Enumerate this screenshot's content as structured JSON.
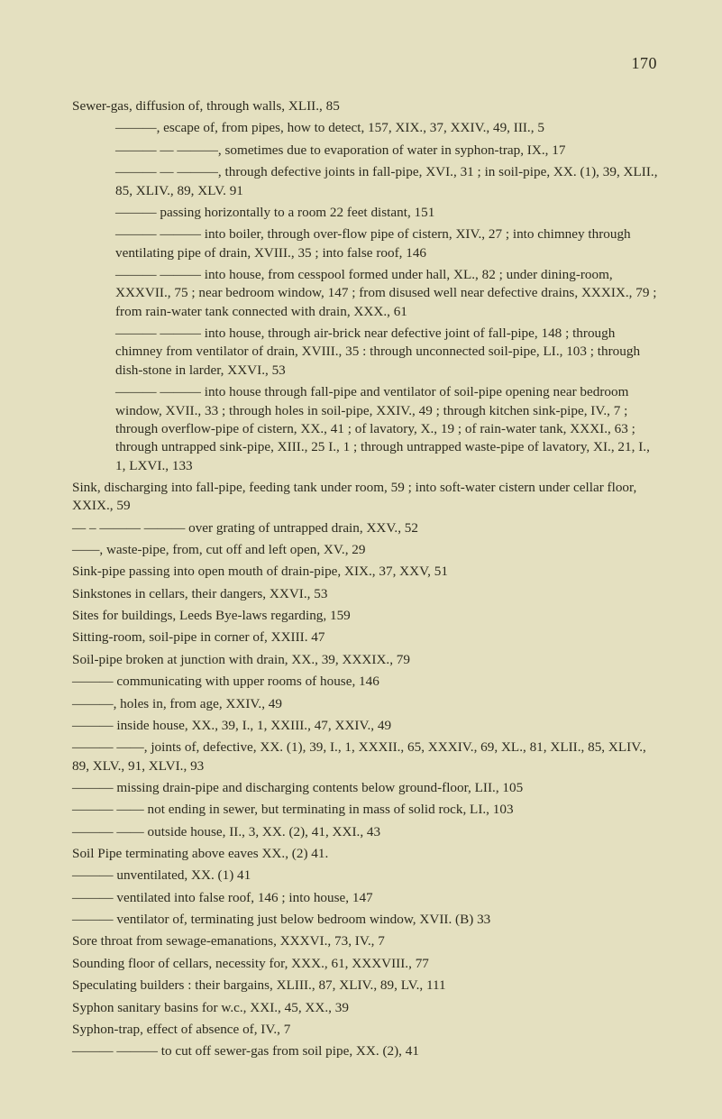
{
  "page_number": "170",
  "lines": [
    {
      "cls": "sub0",
      "t": "Sewer-gas, diffusion of, through walls, XLII., 85"
    },
    {
      "cls": "sub1",
      "t": "———, escape of, from pipes, how to detect, 157, XIX., 37, XXIV., 49, III., 5"
    },
    {
      "cls": "sub1",
      "t": "——— — ———, sometimes due to evaporation of water in syphon-trap, IX., 17"
    },
    {
      "cls": "sub1",
      "t": "——— — ———, through defective joints in fall-pipe, XVI., 31 ; in soil-pipe, XX. (1), 39, XLII., 85, XLIV., 89, XLV. 91"
    },
    {
      "cls": "sub1",
      "t": "——— passing horizontally to a room 22 feet distant, 151"
    },
    {
      "cls": "sub1",
      "t": "——— ——— into boiler, through over-flow pipe of cistern, XIV., 27 ; into chimney through ventilating pipe of drain, XVIII., 35 ; into false roof, 146"
    },
    {
      "cls": "sub1",
      "t": "——— ——— into house, from cesspool formed under hall, XL., 82 ; under dining-room, XXXVII., 75 ; near bedroom window, 147 ; from disused well near defective drains, XXXIX., 79 ; from rain-water tank connected with drain, XXX., 61"
    },
    {
      "cls": "sub1",
      "t": "——— ——— into house, through air-brick near defective joint of fall-pipe, 148 ; through chimney from ventilator of drain, XVIII., 35 : through unconnected soil-pipe, LI., 103 ; through dish-stone in larder, XXVI., 53"
    },
    {
      "cls": "sub1",
      "t": "——— ——— into house through fall-pipe and ventilator of soil-pipe opening near bedroom window, XVII., 33 ; through holes in soil-pipe, XXIV., 49 ; through kitchen sink-pipe, IV., 7 ; through overflow-pipe of cistern, XX., 41 ; of lavatory, X., 19 ; of rain-water tank, XXXI., 63 ; through untrapped sink-pipe, XIII., 25 I., 1 ; through untrapped waste-pipe of lavatory, XI., 21, I., 1, LXVI., 133"
    },
    {
      "cls": "sub0",
      "t": "Sink, discharging into fall-pipe, feeding tank under room, 59 ; into soft-water cistern under cellar floor, XXIX., 59"
    },
    {
      "cls": "sub0",
      "t": "— – ——— ——— over grating of untrapped drain, XXV., 52"
    },
    {
      "cls": "sub0",
      "t": "——, waste-pipe, from, cut off and left open, XV., 29"
    },
    {
      "cls": "sub0",
      "t": "Sink-pipe passing into open mouth of drain-pipe, XIX., 37, XXV, 51"
    },
    {
      "cls": "sub0",
      "t": "Sinkstones in cellars, their dangers, XXVI., 53"
    },
    {
      "cls": "sub0",
      "t": "Sites for buildings, Leeds Bye-laws regarding, 159"
    },
    {
      "cls": "sub0",
      "t": "Sitting-room, soil-pipe in corner of, XXIII. 47"
    },
    {
      "cls": "sub0",
      "t": "Soil-pipe broken at junction with drain, XX., 39, XXXIX., 79"
    },
    {
      "cls": "sub0",
      "t": "——— communicating with upper rooms of house, 146"
    },
    {
      "cls": "sub0",
      "t": "———, holes in, from age, XXIV., 49"
    },
    {
      "cls": "sub0",
      "t": "——— inside house, XX., 39, I., 1, XXIII., 47, XXIV., 49"
    },
    {
      "cls": "sub0",
      "t": "——— ——, joints of, defective, XX. (1), 39, I., 1, XXXII., 65, XXXIV., 69, XL., 81, XLII., 85, XLIV., 89, XLV., 91, XLVI., 93"
    },
    {
      "cls": "sub0",
      "t": "——— missing drain-pipe and discharging contents below ground-floor, LII., 105"
    },
    {
      "cls": "sub0",
      "t": "——— —— not ending in sewer, but terminating in mass of solid rock, LI., 103"
    },
    {
      "cls": "sub0",
      "t": "——— —— outside house, II., 3, XX. (2), 41, XXI., 43"
    },
    {
      "cls": "sub0",
      "t": "Soil Pipe terminating above eaves XX., (2) 41."
    },
    {
      "cls": "sub0",
      "t": "——— unventilated, XX. (1) 41"
    },
    {
      "cls": "sub0",
      "t": "——— ventilated into false roof, 146 ; into house, 147"
    },
    {
      "cls": "sub0",
      "t": "——— ventilator of, terminating just below bedroom window, XVII. (B) 33"
    },
    {
      "cls": "sub0",
      "t": "Sore throat from sewage-emanations, XXXVI., 73, IV., 7"
    },
    {
      "cls": "sub0",
      "t": "Sounding floor of cellars, necessity for, XXX., 61, XXXVIII., 77"
    },
    {
      "cls": "sub0",
      "t": "Speculating builders : their bargains, XLIII., 87, XLIV., 89, LV., 111"
    },
    {
      "cls": "sub0",
      "t": "Syphon sanitary basins for w.c., XXI., 45, XX., 39"
    },
    {
      "cls": "sub0",
      "t": "Syphon-trap, effect of absence of, IV., 7"
    },
    {
      "cls": "sub0",
      "t": "——— ——— to cut off sewer-gas from soil pipe, XX. (2), 41"
    }
  ]
}
